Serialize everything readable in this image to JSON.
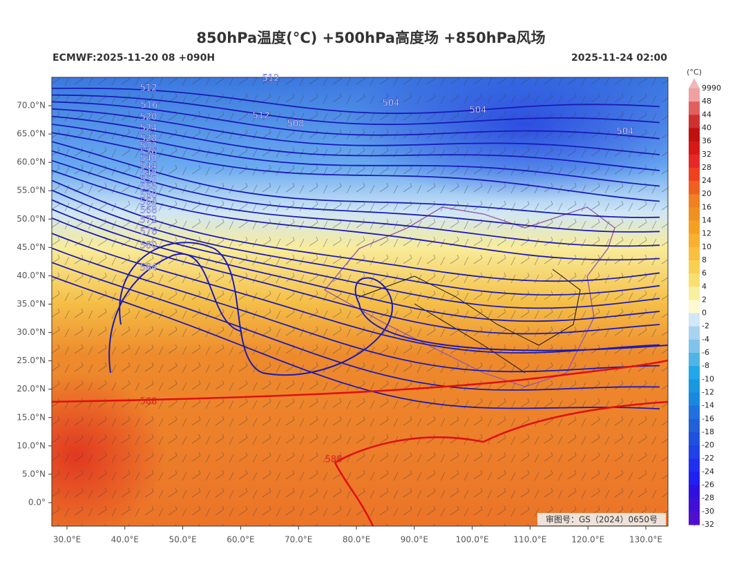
{
  "header": {
    "title": "850hPa温度(°C) +500hPa高度场 +850hPa风场",
    "left": "ECMWF:2025-11-20 08 +090H",
    "right": "2025-11-24 02:00"
  },
  "map": {
    "lon_ticks": [
      {
        "value": 30,
        "label": "30.0°E"
      },
      {
        "value": 40,
        "label": "40.0°E"
      },
      {
        "value": 50,
        "label": "50.0°E"
      },
      {
        "value": 60,
        "label": "60.0°E"
      },
      {
        "value": 70,
        "label": "70.0°E"
      },
      {
        "value": 80,
        "label": "80.0°E"
      },
      {
        "value": 90,
        "label": "90.0°E"
      },
      {
        "value": 100,
        "label": "100.0°E"
      },
      {
        "value": 110,
        "label": "110.0°E"
      },
      {
        "value": 120,
        "label": "120.0°E"
      },
      {
        "value": 130,
        "label": "130.0°E"
      }
    ],
    "lat_ticks": [
      {
        "value": 70,
        "label": "70.0°N"
      },
      {
        "value": 65,
        "label": "65.0°N"
      },
      {
        "value": 60,
        "label": "60.0°N"
      },
      {
        "value": 55,
        "label": "55.0°N"
      },
      {
        "value": 50,
        "label": "50.0°N"
      },
      {
        "value": 45,
        "label": "45.0°N"
      },
      {
        "value": 40,
        "label": "40.0°N"
      },
      {
        "value": 35,
        "label": "35.0°N"
      },
      {
        "value": 30,
        "label": "30.0°N"
      },
      {
        "value": 25,
        "label": "25.0°N"
      },
      {
        "value": 20,
        "label": "20.0°N"
      },
      {
        "value": 15,
        "label": "15.0°N"
      },
      {
        "value": 10,
        "label": "10.0°N"
      },
      {
        "value": 5,
        "label": "5.0°N"
      },
      {
        "value": 0,
        "label": "0.0°"
      }
    ],
    "contour_labels": [
      "512",
      "516",
      "520",
      "524",
      "528",
      "532",
      "536",
      "540",
      "544",
      "548",
      "552",
      "556",
      "560",
      "564",
      "568",
      "572",
      "576",
      "580",
      "584",
      "588",
      "588",
      "512",
      "508",
      "504",
      "504",
      "504",
      "512"
    ],
    "approval": "审图号：GS（2024）0650号"
  },
  "colorbar": {
    "unit": "(°C)",
    "levels": [
      {
        "value": 9990,
        "label": "9990"
      },
      48,
      44,
      40,
      36,
      32,
      28,
      24,
      20,
      16,
      14,
      12,
      10,
      8,
      6,
      4,
      2,
      0,
      -2,
      -4,
      -6,
      -8,
      -10,
      -12,
      -14,
      -16,
      -18,
      -20,
      -22,
      -24,
      -26,
      -28,
      -30,
      -32
    ],
    "colors": [
      "#f0a0a0",
      "#e06060",
      "#d03030",
      "#c01010",
      "#d81818",
      "#e82828",
      "#f04020",
      "#f06020",
      "#f08020",
      "#f09020",
      "#f5a020",
      "#f8b030",
      "#f8c040",
      "#f8d050",
      "#f8e070",
      "#f8f0a0",
      "#fffad0",
      "#d0e8f8",
      "#a8d4f0",
      "#80c4ec",
      "#50b4e8",
      "#20a8e8",
      "#1898e0",
      "#1888e0",
      "#2070e0",
      "#2060d8",
      "#2050e0",
      "#2040e8",
      "#2030f0",
      "#2020f0",
      "#3010e0",
      "#4010d8",
      "#5010d0"
    ]
  }
}
